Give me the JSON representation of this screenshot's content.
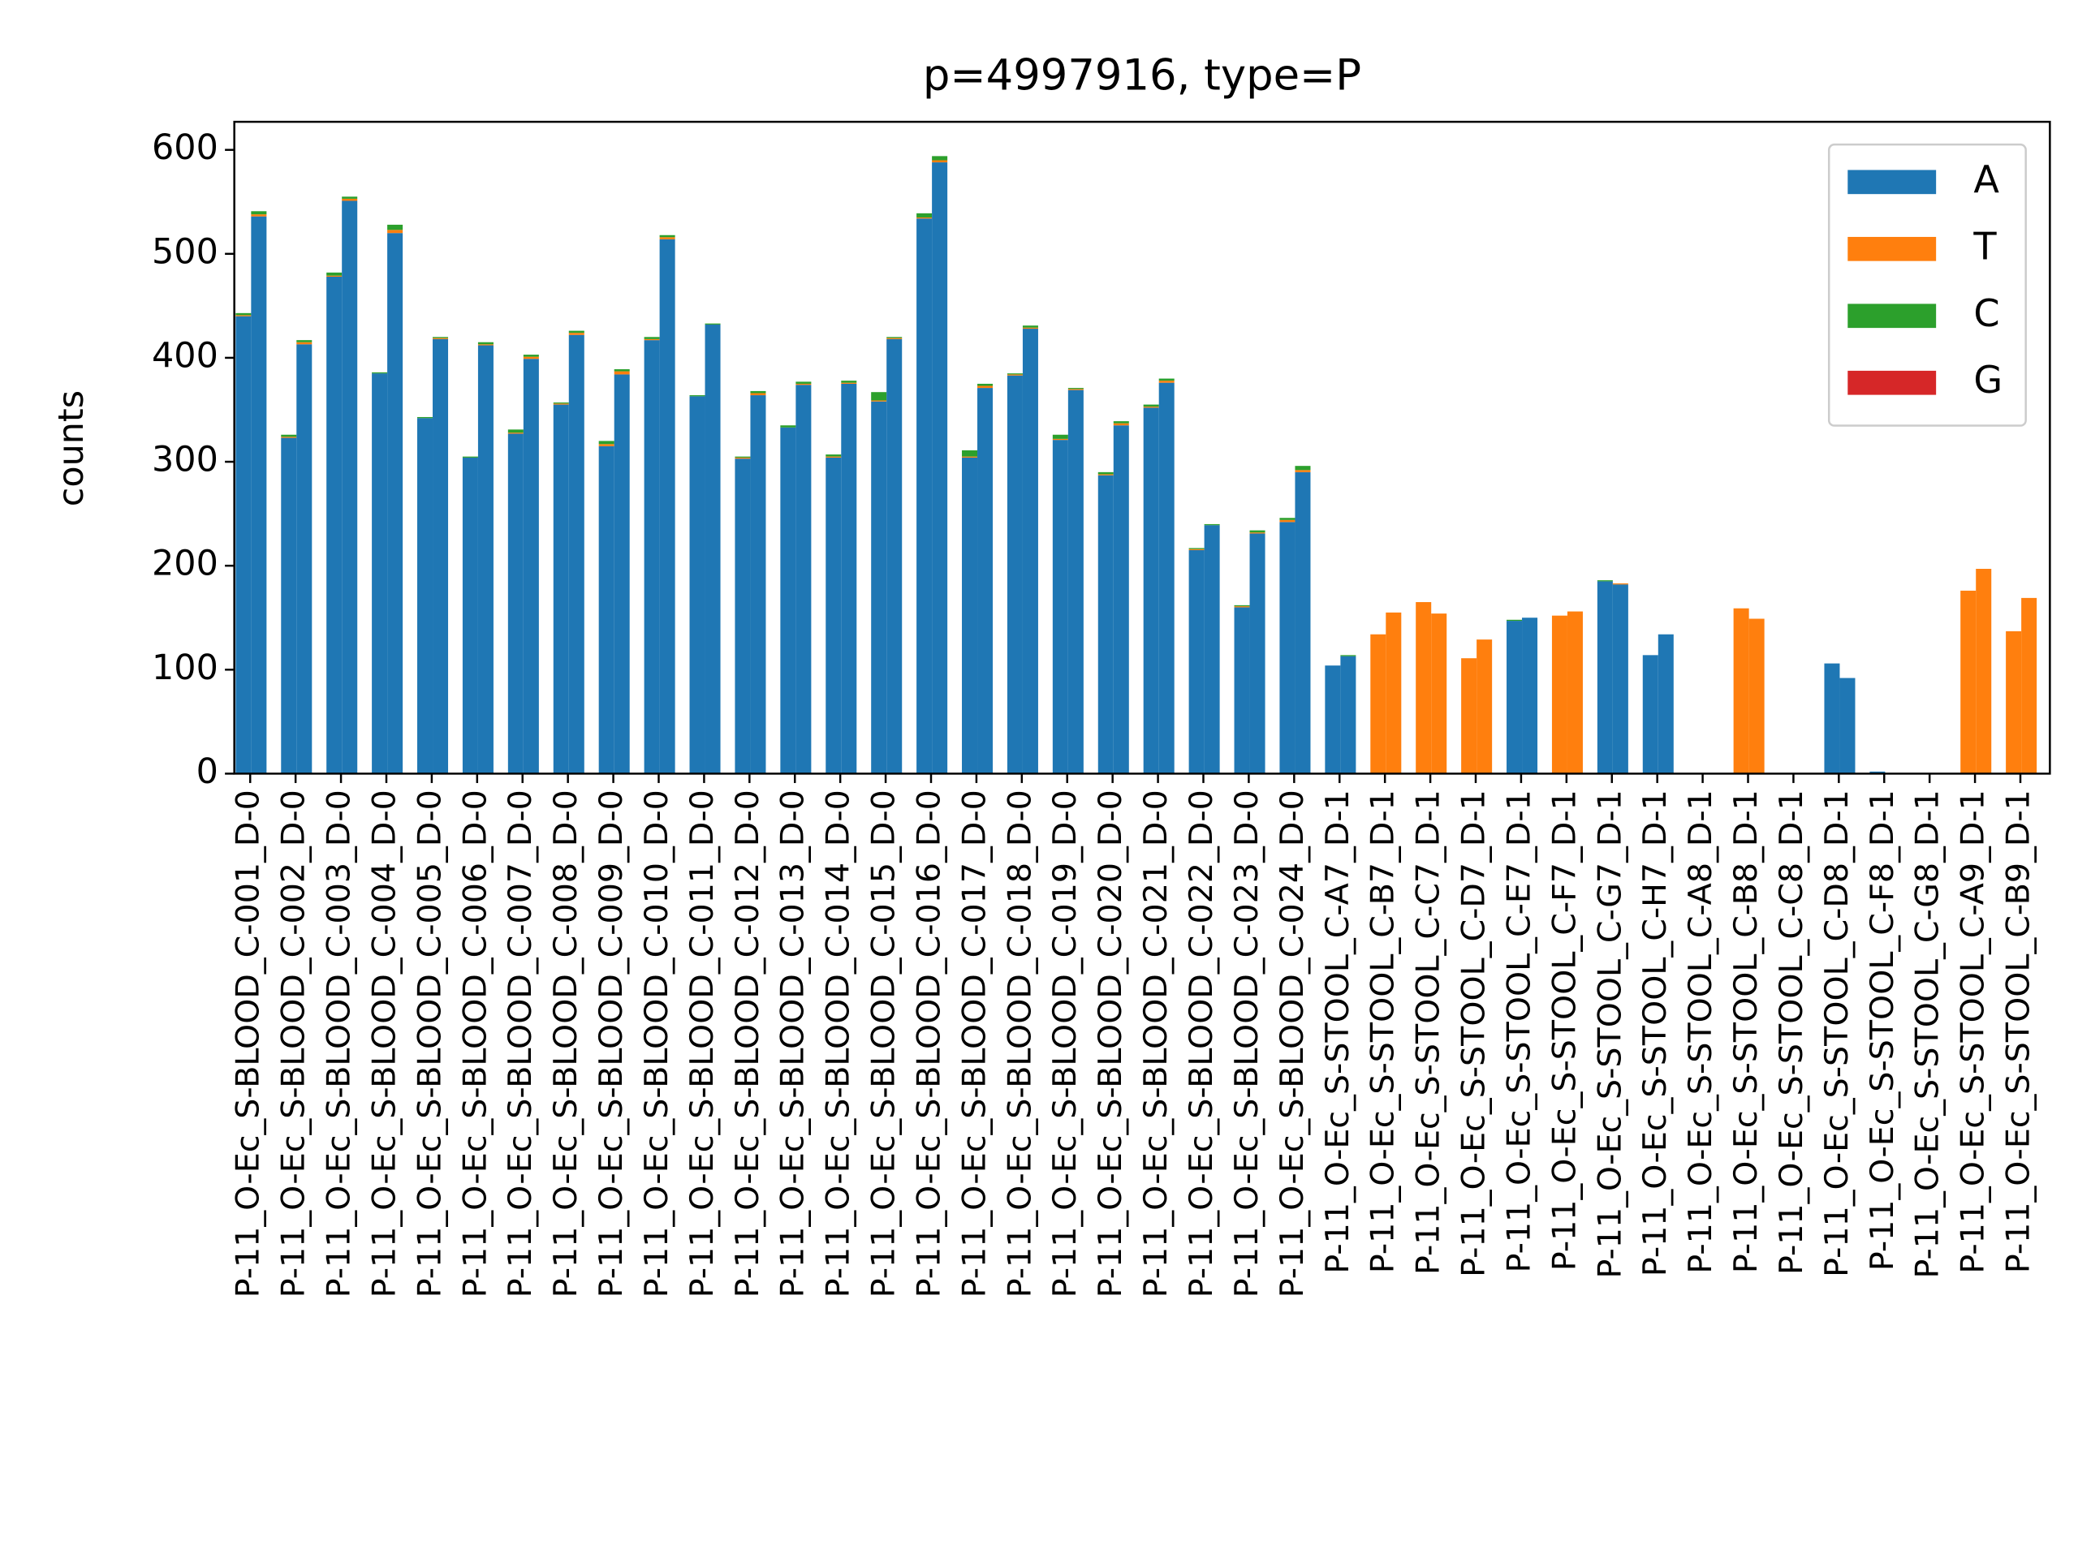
{
  "chart_data": {
    "type": "stacked-bar-pairs",
    "title": "p=4997916, type=P",
    "y_label": "counts",
    "categories": [
      "P-11_O-Ec_S-BLOOD_C-001_D-0",
      "P-11_O-Ec_S-BLOOD_C-002_D-0",
      "P-11_O-Ec_S-BLOOD_C-003_D-0",
      "P-11_O-Ec_S-BLOOD_C-004_D-0",
      "P-11_O-Ec_S-BLOOD_C-005_D-0",
      "P-11_O-Ec_S-BLOOD_C-006_D-0",
      "P-11_O-Ec_S-BLOOD_C-007_D-0",
      "P-11_O-Ec_S-BLOOD_C-008_D-0",
      "P-11_O-Ec_S-BLOOD_C-009_D-0",
      "P-11_O-Ec_S-BLOOD_C-010_D-0",
      "P-11_O-Ec_S-BLOOD_C-011_D-0",
      "P-11_O-Ec_S-BLOOD_C-012_D-0",
      "P-11_O-Ec_S-BLOOD_C-013_D-0",
      "P-11_O-Ec_S-BLOOD_C-014_D-0",
      "P-11_O-Ec_S-BLOOD_C-015_D-0",
      "P-11_O-Ec_S-BLOOD_C-016_D-0",
      "P-11_O-Ec_S-BLOOD_C-017_D-0",
      "P-11_O-Ec_S-BLOOD_C-018_D-0",
      "P-11_O-Ec_S-BLOOD_C-019_D-0",
      "P-11_O-Ec_S-BLOOD_C-020_D-0",
      "P-11_O-Ec_S-BLOOD_C-021_D-0",
      "P-11_O-Ec_S-BLOOD_C-022_D-0",
      "P-11_O-Ec_S-BLOOD_C-023_D-0",
      "P-11_O-Ec_S-BLOOD_C-024_D-0",
      "P-11_O-Ec_S-STOOL_C-A7_D-1",
      "P-11_O-Ec_S-STOOL_C-B7_D-1",
      "P-11_O-Ec_S-STOOL_C-C7_D-1",
      "P-11_O-Ec_S-STOOL_C-D7_D-1",
      "P-11_O-Ec_S-STOOL_C-E7_D-1",
      "P-11_O-Ec_S-STOOL_C-F7_D-1",
      "P-11_O-Ec_S-STOOL_C-G7_D-1",
      "P-11_O-Ec_S-STOOL_C-H7_D-1",
      "P-11_O-Ec_S-STOOL_C-A8_D-1",
      "P-11_O-Ec_S-STOOL_C-B8_D-1",
      "P-11_O-Ec_S-STOOL_C-C8_D-1",
      "P-11_O-Ec_S-STOOL_C-D8_D-1",
      "P-11_O-Ec_S-STOOL_C-F8_D-1",
      "P-11_O-Ec_S-STOOL_C-G8_D-1",
      "P-11_O-Ec_S-STOOL_C-A9_D-1",
      "P-11_O-Ec_S-STOOL_C-B9_D-1"
    ],
    "series": [
      {
        "name": "A",
        "color": "#1f77b4",
        "values": [
          [
            440,
            536
          ],
          [
            323,
            413
          ],
          [
            478,
            551
          ],
          [
            385,
            520
          ],
          [
            342,
            418
          ],
          [
            304,
            412
          ],
          [
            327,
            399
          ],
          [
            355,
            422
          ],
          [
            315,
            384
          ],
          [
            417,
            514
          ],
          [
            363,
            432
          ],
          [
            303,
            364
          ],
          [
            333,
            374
          ],
          [
            304,
            375
          ],
          [
            358,
            418
          ],
          [
            534,
            588
          ],
          [
            304,
            371
          ],
          [
            383,
            428
          ],
          [
            321,
            369
          ],
          [
            287,
            335
          ],
          [
            352,
            376
          ],
          [
            215,
            239
          ],
          [
            160,
            231
          ],
          [
            242,
            290
          ],
          [
            104,
            113
          ],
          [
            0,
            0
          ],
          [
            0,
            0
          ],
          [
            0,
            0
          ],
          [
            147,
            150
          ],
          [
            0,
            0
          ],
          [
            185,
            182
          ],
          [
            114,
            134
          ],
          [
            0,
            0
          ],
          [
            0,
            0
          ],
          [
            0,
            0
          ],
          [
            106,
            92
          ],
          [
            2,
            0
          ],
          [
            0,
            0
          ],
          [
            0,
            0
          ],
          [
            0,
            0
          ]
        ]
      },
      {
        "name": "T",
        "color": "#ff7f0e",
        "values": [
          [
            1,
            2
          ],
          [
            1,
            2
          ],
          [
            1,
            2
          ],
          [
            0,
            3
          ],
          [
            0,
            1
          ],
          [
            0,
            1
          ],
          [
            1,
            2
          ],
          [
            1,
            2
          ],
          [
            2,
            3
          ],
          [
            1,
            2
          ],
          [
            0,
            0
          ],
          [
            1,
            2
          ],
          [
            0,
            1
          ],
          [
            1,
            1
          ],
          [
            1,
            1
          ],
          [
            1,
            2
          ],
          [
            1,
            2
          ],
          [
            1,
            1
          ],
          [
            1,
            1
          ],
          [
            1,
            2
          ],
          [
            1,
            2
          ],
          [
            1,
            0
          ],
          [
            1,
            1
          ],
          [
            2,
            2
          ],
          [
            0,
            0
          ],
          [
            134,
            155
          ],
          [
            165,
            154
          ],
          [
            111,
            129
          ],
          [
            0,
            0
          ],
          [
            152,
            156
          ],
          [
            0,
            1
          ],
          [
            0,
            0
          ],
          [
            0,
            0
          ],
          [
            159,
            149
          ],
          [
            0,
            0
          ],
          [
            0,
            0
          ],
          [
            0,
            0
          ],
          [
            0,
            0
          ],
          [
            176,
            197
          ],
          [
            137,
            169
          ]
        ]
      },
      {
        "name": "C",
        "color": "#2ca02c",
        "values": [
          [
            2,
            3
          ],
          [
            2,
            2
          ],
          [
            3,
            2
          ],
          [
            1,
            5
          ],
          [
            1,
            1
          ],
          [
            1,
            2
          ],
          [
            3,
            2
          ],
          [
            1,
            2
          ],
          [
            3,
            2
          ],
          [
            2,
            2
          ],
          [
            1,
            1
          ],
          [
            1,
            2
          ],
          [
            2,
            2
          ],
          [
            2,
            2
          ],
          [
            8,
            1
          ],
          [
            4,
            4
          ],
          [
            6,
            2
          ],
          [
            1,
            2
          ],
          [
            4,
            1
          ],
          [
            2,
            2
          ],
          [
            2,
            2
          ],
          [
            1,
            1
          ],
          [
            1,
            2
          ],
          [
            2,
            4
          ],
          [
            0,
            1
          ],
          [
            0,
            0
          ],
          [
            0,
            0
          ],
          [
            0,
            0
          ],
          [
            1,
            0
          ],
          [
            0,
            0
          ],
          [
            1,
            0
          ],
          [
            0,
            0
          ],
          [
            0,
            0
          ],
          [
            0,
            0
          ],
          [
            0,
            0
          ],
          [
            0,
            0
          ],
          [
            0,
            0
          ],
          [
            0,
            0
          ],
          [
            0,
            0
          ],
          [
            0,
            0
          ]
        ]
      },
      {
        "name": "G",
        "color": "#d62728",
        "values": [
          [
            0,
            0
          ],
          [
            0,
            0
          ],
          [
            0,
            0
          ],
          [
            0,
            0
          ],
          [
            0,
            0
          ],
          [
            0,
            0
          ],
          [
            0,
            0
          ],
          [
            0,
            0
          ],
          [
            0,
            0
          ],
          [
            0,
            0
          ],
          [
            0,
            0
          ],
          [
            0,
            0
          ],
          [
            0,
            0
          ],
          [
            0,
            0
          ],
          [
            0,
            0
          ],
          [
            0,
            0
          ],
          [
            0,
            0
          ],
          [
            0,
            0
          ],
          [
            0,
            0
          ],
          [
            0,
            0
          ],
          [
            0,
            0
          ],
          [
            0,
            0
          ],
          [
            0,
            0
          ],
          [
            0,
            0
          ],
          [
            0,
            0
          ],
          [
            0,
            0
          ],
          [
            0,
            0
          ],
          [
            0,
            0
          ],
          [
            0,
            0
          ],
          [
            0,
            0
          ],
          [
            0,
            0
          ],
          [
            0,
            0
          ],
          [
            0,
            0
          ],
          [
            0,
            0
          ],
          [
            0,
            0
          ],
          [
            0,
            0
          ],
          [
            0,
            0
          ],
          [
            0,
            0
          ],
          [
            0,
            0
          ],
          [
            0,
            0
          ]
        ]
      }
    ],
    "ylim": [
      0,
      627
    ],
    "yticks": [
      0,
      100,
      200,
      300,
      400,
      500,
      600
    ],
    "legend": "upper right"
  }
}
